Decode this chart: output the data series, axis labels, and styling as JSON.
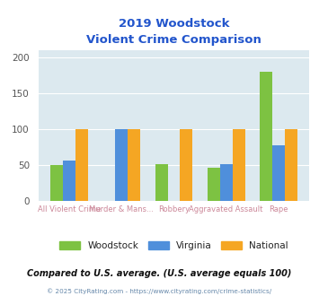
{
  "title_line1": "2019 Woodstock",
  "title_line2": "Violent Crime Comparison",
  "categories": [
    "All Violent Crime",
    "Murder & Mans...",
    "Robbery",
    "Aggravated Assault",
    "Rape"
  ],
  "woodstock": [
    50,
    0,
    52,
    47,
    180
  ],
  "virginia": [
    57,
    100,
    0,
    52,
    78
  ],
  "national": [
    100,
    100,
    100,
    100,
    100
  ],
  "color_woodstock": "#7dc242",
  "color_virginia": "#4f8fdb",
  "color_national": "#f5a623",
  "bg_color": "#dce9ef",
  "ylim": [
    0,
    210
  ],
  "yticks": [
    0,
    50,
    100,
    150,
    200
  ],
  "footnote": "Compared to U.S. average. (U.S. average equals 100)",
  "credit": "© 2025 CityRating.com - https://www.cityrating.com/crime-statistics/",
  "title_color": "#2255cc",
  "xlabel_color": "#cc8899",
  "footnote_color": "#111111",
  "credit_color": "#6688aa",
  "legend_text_color": "#222222"
}
